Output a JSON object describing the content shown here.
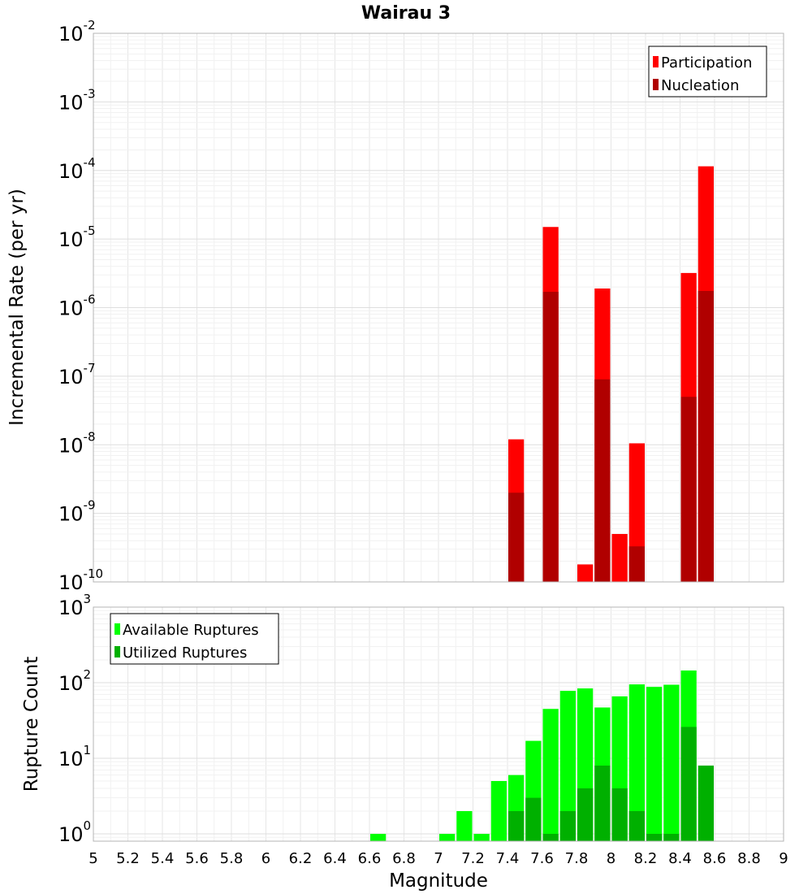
{
  "chart_data": [
    {
      "type": "bar",
      "title": "Wairau 3",
      "xlabel": "Magnitude",
      "ylabel": "Incremental Rate (per yr)",
      "y_scale": "log",
      "ylim": [
        1e-10,
        0.01
      ],
      "xlim": [
        5,
        9
      ],
      "grid": true,
      "legend_position": "top-right",
      "bin_width": 0.1,
      "series": [
        {
          "name": "Participation",
          "color": "#ff0000",
          "points": [
            {
              "x": 7.45,
              "y": 1.2e-08
            },
            {
              "x": 7.65,
              "y": 1.5e-05
            },
            {
              "x": 7.85,
              "y": 1.8e-10
            },
            {
              "x": 7.95,
              "y": 1.9e-06
            },
            {
              "x": 8.05,
              "y": 5e-10
            },
            {
              "x": 8.15,
              "y": 1.05e-08
            },
            {
              "x": 8.45,
              "y": 3.2e-06
            },
            {
              "x": 8.55,
              "y": 0.000115
            }
          ]
        },
        {
          "name": "Nucleation",
          "color": "#b00000",
          "points": [
            {
              "x": 7.45,
              "y": 2e-09
            },
            {
              "x": 7.65,
              "y": 1.7e-06
            },
            {
              "x": 7.95,
              "y": 9e-08
            },
            {
              "x": 8.15,
              "y": 3.3e-10
            },
            {
              "x": 8.45,
              "y": 5e-08
            },
            {
              "x": 8.55,
              "y": 1.75e-06
            }
          ]
        }
      ]
    },
    {
      "type": "bar",
      "title": "",
      "xlabel": "Magnitude",
      "ylabel": "Rupture Count",
      "y_scale": "log",
      "ylim": [
        0.8,
        1000
      ],
      "xlim": [
        5,
        9
      ],
      "grid": true,
      "legend_position": "top-left",
      "bin_width": 0.1,
      "x_ticks": [
        "5",
        "5.2",
        "5.4",
        "5.6",
        "5.8",
        "6",
        "6.2",
        "6.4",
        "6.6",
        "6.8",
        "7",
        "7.2",
        "7.4",
        "7.6",
        "7.8",
        "8",
        "8.2",
        "8.4",
        "8.6",
        "8.8",
        "9"
      ],
      "series": [
        {
          "name": "Available Ruptures",
          "color": "#00ff00",
          "points": [
            {
              "x": 6.65,
              "y": 1
            },
            {
              "x": 7.05,
              "y": 1
            },
            {
              "x": 7.15,
              "y": 2
            },
            {
              "x": 7.25,
              "y": 1
            },
            {
              "x": 7.35,
              "y": 5
            },
            {
              "x": 7.45,
              "y": 6
            },
            {
              "x": 7.55,
              "y": 17
            },
            {
              "x": 7.65,
              "y": 45
            },
            {
              "x": 7.75,
              "y": 78
            },
            {
              "x": 7.85,
              "y": 84
            },
            {
              "x": 7.95,
              "y": 47
            },
            {
              "x": 8.05,
              "y": 66
            },
            {
              "x": 8.15,
              "y": 95
            },
            {
              "x": 8.25,
              "y": 88
            },
            {
              "x": 8.35,
              "y": 94
            },
            {
              "x": 8.45,
              "y": 145
            }
          ]
        },
        {
          "name": "Utilized Ruptures",
          "color": "#00b000",
          "points": [
            {
              "x": 7.45,
              "y": 2
            },
            {
              "x": 7.55,
              "y": 3
            },
            {
              "x": 7.65,
              "y": 1
            },
            {
              "x": 7.75,
              "y": 2
            },
            {
              "x": 7.85,
              "y": 4
            },
            {
              "x": 7.95,
              "y": 8
            },
            {
              "x": 8.05,
              "y": 4
            },
            {
              "x": 8.15,
              "y": 2
            },
            {
              "x": 8.25,
              "y": 1
            },
            {
              "x": 8.35,
              "y": 1
            },
            {
              "x": 8.45,
              "y": 26
            },
            {
              "x": 8.55,
              "y": 8
            }
          ]
        }
      ]
    }
  ]
}
